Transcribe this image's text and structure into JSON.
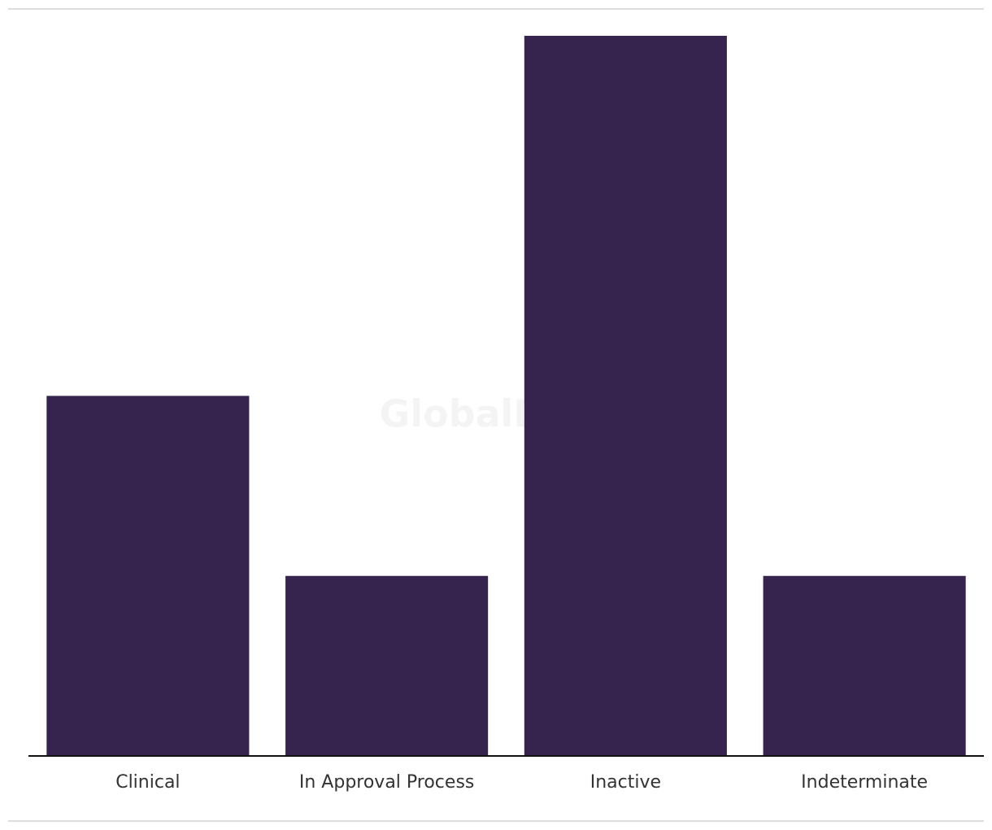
{
  "chart_data": {
    "type": "bar",
    "watermark": "GlobalData",
    "categories": [
      "Clinical",
      "In Approval Process",
      "Inactive",
      "Indeterminate"
    ],
    "values": [
      2,
      1,
      4,
      1
    ],
    "color": "#36244f",
    "ylim": [
      0,
      4
    ]
  }
}
